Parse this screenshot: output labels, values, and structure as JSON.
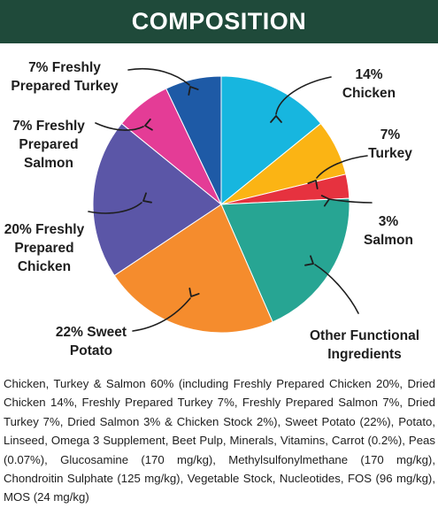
{
  "header": {
    "title": "COMPOSITION"
  },
  "chart_data": {
    "type": "pie",
    "title": "COMPOSITION",
    "slices": [
      {
        "value": 14,
        "color": "#17b6df",
        "label_lines": [
          "14%",
          "Chicken"
        ]
      },
      {
        "value": 7,
        "color": "#fbb414",
        "label_lines": [
          "7%",
          "Turkey"
        ]
      },
      {
        "value": 3,
        "color": "#e6323f",
        "label_lines": [
          "3%",
          "Salmon"
        ]
      },
      {
        "value": 19,
        "color": "#27a593",
        "label_lines": [
          "Other Functional",
          "Ingredients"
        ]
      },
      {
        "value": 22,
        "color": "#f58c2d",
        "label_lines": [
          "22% Sweet",
          "Potato"
        ]
      },
      {
        "value": 20,
        "color": "#5b56a7",
        "label_lines": [
          "20% Freshly",
          "Prepared",
          "Chicken"
        ]
      },
      {
        "value": 7,
        "color": "#e43c96",
        "label_lines": [
          "7% Freshly",
          "Prepared",
          "Salmon"
        ]
      },
      {
        "value": 7,
        "color": "#1e5aa6",
        "label_lines": [
          "7% Freshly",
          "Prepared Turkey"
        ]
      }
    ]
  },
  "description": "Chicken, Turkey & Salmon 60% (including Freshly Prepared Chicken 20%, Dried Chicken 14%, Freshly Prepared Turkey 7%, Freshly Prepared Salmon 7%, Dried Turkey 7%, Dried Salmon 3% & Chicken Stock 2%), Sweet Potato (22%), Potato, Linseed, Omega 3 Supplement, Beet Pulp, Minerals, Vitamins, Carrot (0.2%), Peas (0.07%), Glucosamine (170 mg/kg), Methylsulfonylmethane (170 mg/kg), Chondroitin Sulphate (125 mg/kg), Vegetable Stock, Nucleotides, FOS (96 mg/kg), MOS (24 mg/kg)"
}
